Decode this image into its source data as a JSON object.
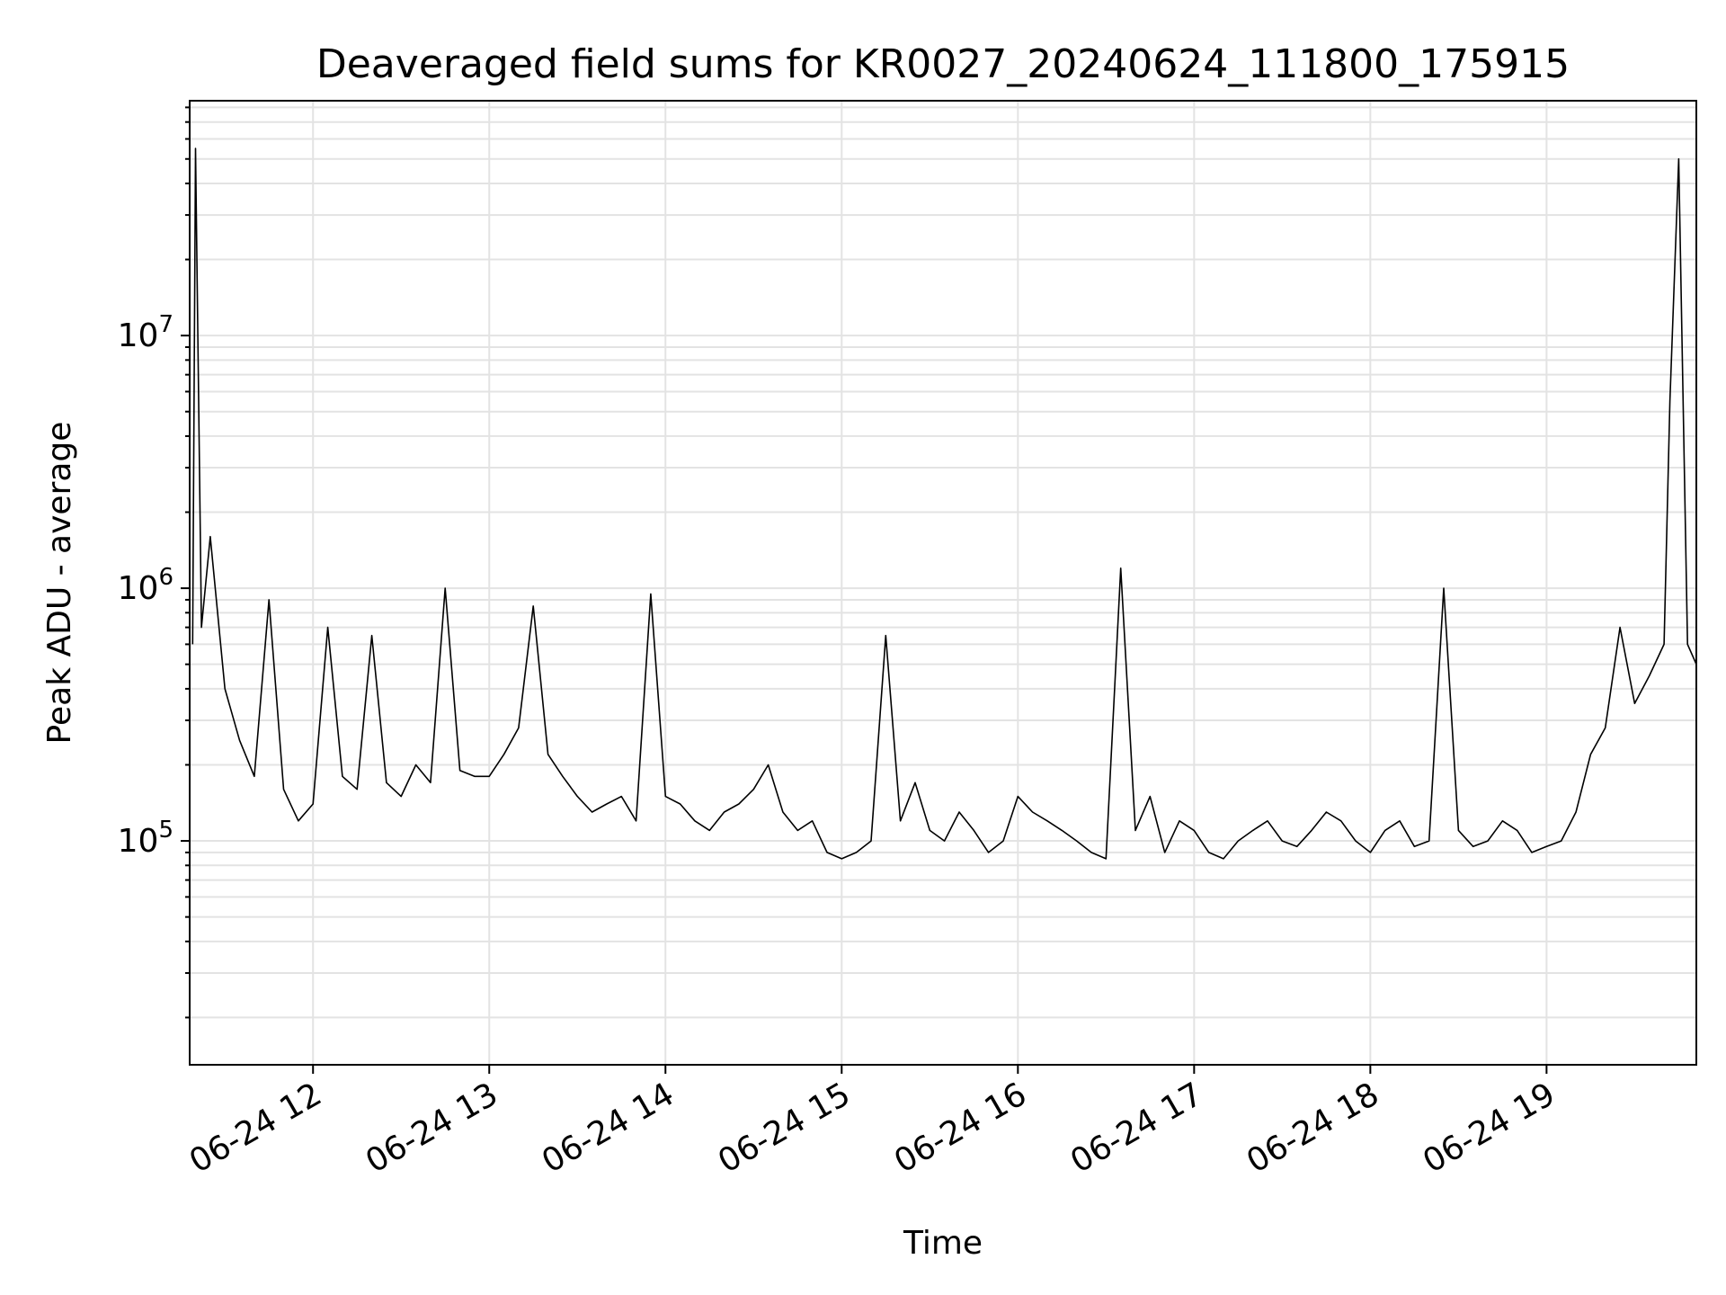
{
  "chart_data": {
    "type": "line",
    "title": "Deaveraged field sums for KR0027_20240624_111800_175915",
    "xlabel": "Time",
    "ylabel": "Peak ADU - average",
    "yscale": "log",
    "ylim": [
      13000,
      85000000
    ],
    "xlim": [
      "2024-06-24 11:18",
      "2024-06-24 19:51"
    ],
    "x_ticks": [
      "06-24 12",
      "06-24 13",
      "06-24 14",
      "06-24 15",
      "06-24 16",
      "06-24 17",
      "06-24 18",
      "06-24 19"
    ],
    "y_ticks": [
      {
        "base": "10",
        "exp": "5",
        "value": 100000
      },
      {
        "base": "10",
        "exp": "6",
        "value": 1000000
      },
      {
        "base": "10",
        "exp": "7",
        "value": 10000000
      }
    ],
    "grid": true,
    "line_color": "#000000",
    "series": [
      {
        "x": [
          "2024-06-24 11:19",
          "2024-06-24 11:20",
          "2024-06-24 11:22",
          "2024-06-24 11:25",
          "2024-06-24 11:30",
          "2024-06-24 11:35",
          "2024-06-24 11:40",
          "2024-06-24 11:45",
          "2024-06-24 11:50",
          "2024-06-24 11:55",
          "2024-06-24 12:00",
          "2024-06-24 12:05",
          "2024-06-24 12:10",
          "2024-06-24 12:15",
          "2024-06-24 12:20",
          "2024-06-24 12:25",
          "2024-06-24 12:30",
          "2024-06-24 12:35",
          "2024-06-24 12:40",
          "2024-06-24 12:45",
          "2024-06-24 12:50",
          "2024-06-24 12:55",
          "2024-06-24 13:00",
          "2024-06-24 13:05",
          "2024-06-24 13:10",
          "2024-06-24 13:15",
          "2024-06-24 13:20",
          "2024-06-24 13:25",
          "2024-06-24 13:30",
          "2024-06-24 13:35",
          "2024-06-24 13:40",
          "2024-06-24 13:45",
          "2024-06-24 13:50",
          "2024-06-24 13:55",
          "2024-06-24 14:00",
          "2024-06-24 14:05",
          "2024-06-24 14:10",
          "2024-06-24 14:15",
          "2024-06-24 14:20",
          "2024-06-24 14:25",
          "2024-06-24 14:30",
          "2024-06-24 14:35",
          "2024-06-24 14:40",
          "2024-06-24 14:45",
          "2024-06-24 14:50",
          "2024-06-24 14:55",
          "2024-06-24 15:00",
          "2024-06-24 15:05",
          "2024-06-24 15:10",
          "2024-06-24 15:15",
          "2024-06-24 15:20",
          "2024-06-24 15:25",
          "2024-06-24 15:30",
          "2024-06-24 15:35",
          "2024-06-24 15:40",
          "2024-06-24 15:45",
          "2024-06-24 15:50",
          "2024-06-24 15:55",
          "2024-06-24 16:00",
          "2024-06-24 16:05",
          "2024-06-24 16:10",
          "2024-06-24 16:15",
          "2024-06-24 16:20",
          "2024-06-24 16:25",
          "2024-06-24 16:30",
          "2024-06-24 16:35",
          "2024-06-24 16:40",
          "2024-06-24 16:45",
          "2024-06-24 16:50",
          "2024-06-24 16:55",
          "2024-06-24 17:00",
          "2024-06-24 17:05",
          "2024-06-24 17:10",
          "2024-06-24 17:15",
          "2024-06-24 17:20",
          "2024-06-24 17:25",
          "2024-06-24 17:30",
          "2024-06-24 17:35",
          "2024-06-24 17:40",
          "2024-06-24 17:45",
          "2024-06-24 17:50",
          "2024-06-24 17:55",
          "2024-06-24 18:00",
          "2024-06-24 18:05",
          "2024-06-24 18:10",
          "2024-06-24 18:15",
          "2024-06-24 18:20",
          "2024-06-24 18:25",
          "2024-06-24 18:30",
          "2024-06-24 18:35",
          "2024-06-24 18:40",
          "2024-06-24 18:45",
          "2024-06-24 18:50",
          "2024-06-24 18:55",
          "2024-06-24 19:00",
          "2024-06-24 19:05",
          "2024-06-24 19:10",
          "2024-06-24 19:15",
          "2024-06-24 19:20",
          "2024-06-24 19:25",
          "2024-06-24 19:30",
          "2024-06-24 19:35",
          "2024-06-24 19:40",
          "2024-06-24 19:42",
          "2024-06-24 19:45",
          "2024-06-24 19:48",
          "2024-06-24 19:51"
        ],
        "values": [
          600000,
          55000000,
          700000,
          1600000,
          400000,
          250000,
          180000,
          900000,
          160000,
          120000,
          140000,
          700000,
          180000,
          160000,
          650000,
          170000,
          150000,
          200000,
          170000,
          1000000,
          190000,
          180000,
          180000,
          220000,
          280000,
          850000,
          220000,
          180000,
          150000,
          130000,
          140000,
          150000,
          120000,
          950000,
          150000,
          140000,
          120000,
          110000,
          130000,
          140000,
          160000,
          200000,
          130000,
          110000,
          120000,
          90000,
          85000,
          90000,
          100000,
          650000,
          120000,
          170000,
          110000,
          100000,
          130000,
          110000,
          90000,
          100000,
          150000,
          130000,
          120000,
          110000,
          100000,
          90000,
          85000,
          1200000,
          110000,
          150000,
          90000,
          120000,
          110000,
          90000,
          85000,
          100000,
          110000,
          120000,
          100000,
          95000,
          110000,
          130000,
          120000,
          100000,
          90000,
          110000,
          120000,
          95000,
          100000,
          1000000,
          110000,
          95000,
          100000,
          120000,
          110000,
          90000,
          95000,
          100000,
          130000,
          220000,
          280000,
          700000,
          350000,
          450000,
          600000,
          5500000,
          50000000,
          600000,
          500000
        ]
      }
    ]
  }
}
